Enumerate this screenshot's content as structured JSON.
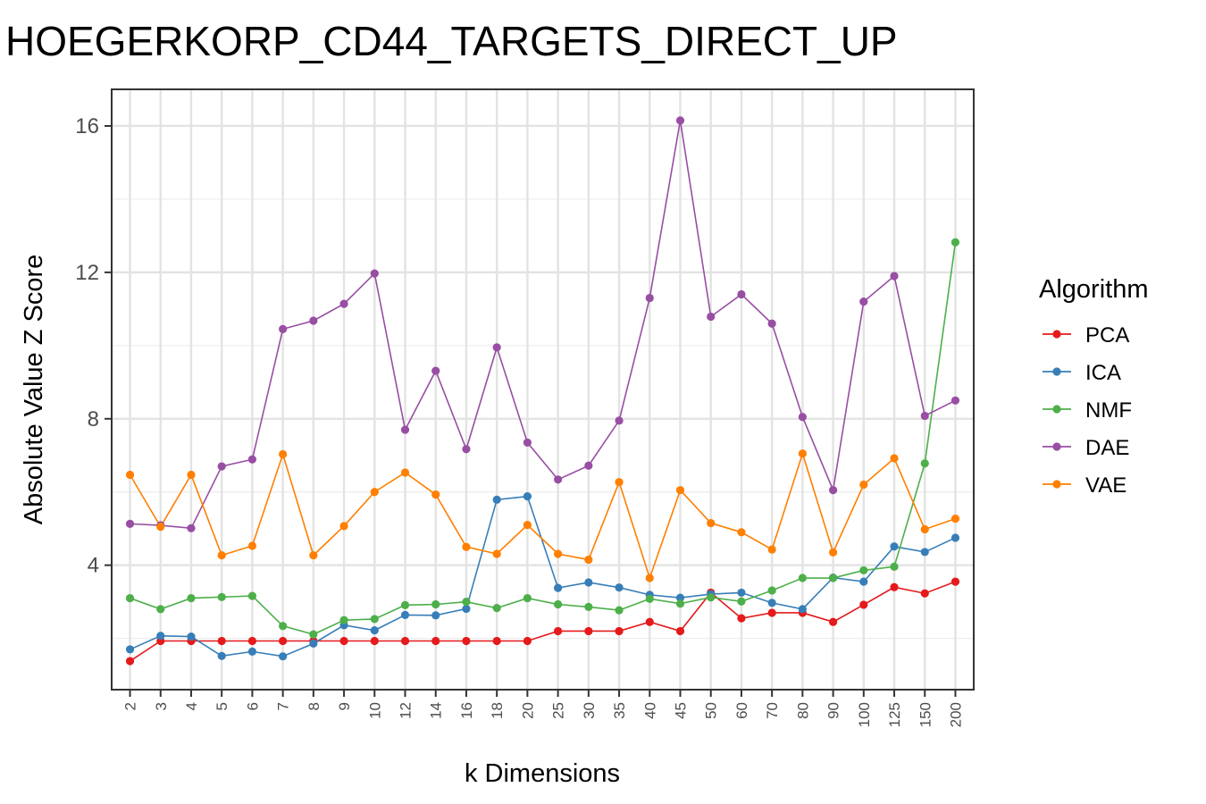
{
  "chart_data": {
    "type": "line",
    "title": "HOEGERKORP_CD44_TARGETS_DIRECT_UP",
    "xlabel": "k Dimensions",
    "ylabel": "Absolute Value Z Score",
    "categories": [
      "2",
      "3",
      "4",
      "5",
      "6",
      "7",
      "8",
      "9",
      "10",
      "12",
      "14",
      "16",
      "18",
      "20",
      "25",
      "30",
      "35",
      "40",
      "45",
      "50",
      "60",
      "70",
      "80",
      "90",
      "100",
      "125",
      "150",
      "200"
    ],
    "ylim": [
      0.6,
      17
    ],
    "yticks": [
      4,
      8,
      12,
      16
    ],
    "grid": true,
    "legend": {
      "title": "Algorithm",
      "position": "right"
    },
    "series": [
      {
        "name": "PCA",
        "color": "#e41a1c",
        "values": [
          1.38,
          1.93,
          1.93,
          1.93,
          1.93,
          1.93,
          1.93,
          1.93,
          1.93,
          1.93,
          1.93,
          1.93,
          1.93,
          1.93,
          2.2,
          2.2,
          2.2,
          2.45,
          2.2,
          3.25,
          2.55,
          2.7,
          2.7,
          2.45,
          2.92,
          3.4,
          3.23,
          3.55
        ]
      },
      {
        "name": "ICA",
        "color": "#377eb8",
        "values": [
          1.7,
          2.07,
          2.05,
          1.52,
          1.64,
          1.51,
          1.86,
          2.36,
          2.22,
          2.64,
          2.63,
          2.81,
          5.79,
          5.88,
          3.38,
          3.53,
          3.39,
          3.19,
          3.11,
          3.21,
          3.25,
          2.97,
          2.8,
          3.66,
          3.55,
          4.51,
          4.36,
          4.75
        ]
      },
      {
        "name": "NMF",
        "color": "#4daf4a",
        "values": [
          3.1,
          2.8,
          3.1,
          3.13,
          3.16,
          2.34,
          2.11,
          2.5,
          2.53,
          2.91,
          2.93,
          3.0,
          2.83,
          3.1,
          2.93,
          2.86,
          2.77,
          3.08,
          2.95,
          3.12,
          3.01,
          3.31,
          3.65,
          3.65,
          3.86,
          3.96,
          6.78,
          12.82
        ]
      },
      {
        "name": "DAE",
        "color": "#984ea3",
        "values": [
          5.13,
          5.09,
          5.01,
          6.7,
          6.89,
          10.45,
          10.68,
          11.14,
          11.97,
          7.7,
          9.31,
          7.17,
          9.95,
          7.35,
          6.34,
          6.72,
          7.95,
          11.3,
          16.15,
          10.79,
          11.4,
          10.6,
          8.05,
          6.05,
          11.2,
          11.9,
          8.08,
          8.5
        ]
      },
      {
        "name": "VAE",
        "color": "#ff7f00",
        "values": [
          6.47,
          5.05,
          6.47,
          4.27,
          4.53,
          7.03,
          4.27,
          5.07,
          6.0,
          6.53,
          5.93,
          4.5,
          4.31,
          5.1,
          4.31,
          4.15,
          6.27,
          3.65,
          6.05,
          5.15,
          4.9,
          4.43,
          7.05,
          4.35,
          6.2,
          6.92,
          4.98,
          5.27
        ]
      }
    ]
  }
}
